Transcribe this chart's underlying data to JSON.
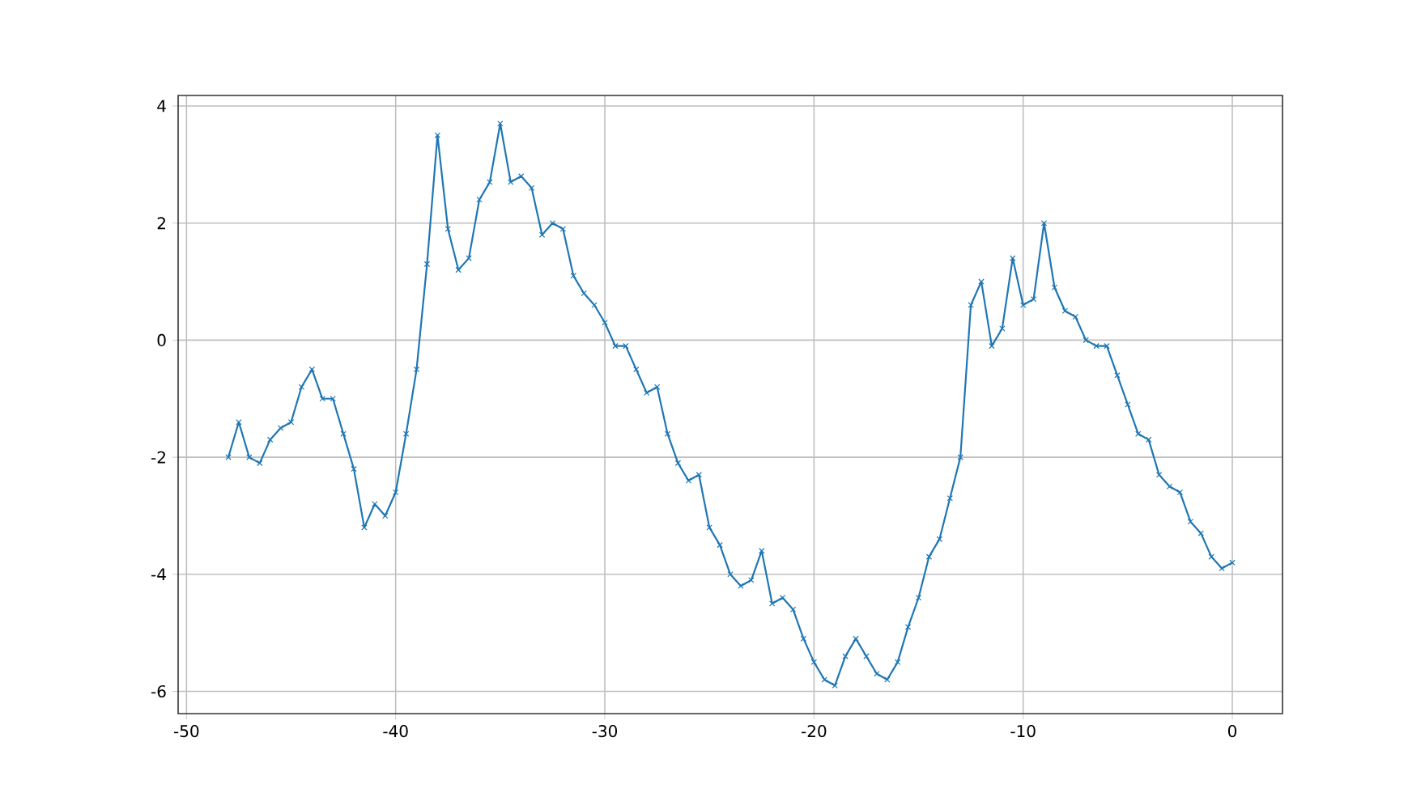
{
  "chart_data": {
    "type": "line",
    "x": [
      -48,
      -47.5,
      -47,
      -46.5,
      -46,
      -45.5,
      -45,
      -44.5,
      -44,
      -43.5,
      -43,
      -42.5,
      -42,
      -41.5,
      -41,
      -40.5,
      -40,
      -39.5,
      -39,
      -38.5,
      -38,
      -37.5,
      -37,
      -36.5,
      -36,
      -35.5,
      -35,
      -34.5,
      -34,
      -33.5,
      -33,
      -32.5,
      -32,
      -31.5,
      -31,
      -30.5,
      -30,
      -29.5,
      -29,
      -28.5,
      -28,
      -27.5,
      -27,
      -26.5,
      -26,
      -25.5,
      -25,
      -24.5,
      -24,
      -23.5,
      -23,
      -22.5,
      -22,
      -21.5,
      -21,
      -20.5,
      -20,
      -19.5,
      -19,
      -18.5,
      -18,
      -17.5,
      -17,
      -16.5,
      -16,
      -15.5,
      -15,
      -14.5,
      -14,
      -13.5,
      -13,
      -12.5,
      -12,
      -11.5,
      -11,
      -10.5,
      -10,
      -9.5,
      -9,
      -8.5,
      -8,
      -7.5,
      -7,
      -6.5,
      -6,
      -5.5,
      -5,
      -4.5,
      -4,
      -3.5,
      -3,
      -2.5,
      -2,
      -1.5,
      -1,
      -0.5,
      0
    ],
    "series": [
      {
        "color": "#1f77b4",
        "values": [
          -2.0,
          -1.4,
          -2.0,
          -2.1,
          -1.7,
          -1.5,
          -1.4,
          -0.8,
          -0.5,
          -1.0,
          -1.0,
          -1.6,
          -2.2,
          -3.2,
          -2.8,
          -3.0,
          -2.6,
          -1.6,
          -0.5,
          1.3,
          3.5,
          1.9,
          1.2,
          1.4,
          2.4,
          2.7,
          3.7,
          2.7,
          2.8,
          2.6,
          1.8,
          2.0,
          1.9,
          1.1,
          0.8,
          0.6,
          0.3,
          -0.1,
          -0.1,
          -0.5,
          -0.9,
          -0.8,
          -1.6,
          -2.1,
          -2.4,
          -2.3,
          -3.2,
          -3.5,
          -4.0,
          -4.2,
          -4.1,
          -3.6,
          -4.5,
          -4.4,
          -4.6,
          -5.1,
          -5.5,
          -5.8,
          -5.9,
          -5.4,
          -5.1,
          -5.4,
          -5.7,
          -5.8,
          -5.5,
          -4.9,
          -4.4,
          -3.7,
          -3.4,
          -2.7,
          -2.0,
          0.6,
          1.0,
          -0.1,
          0.2,
          1.4,
          0.6,
          0.7,
          2.0,
          0.9,
          0.5,
          0.4,
          0.0,
          -0.1,
          -0.1,
          -0.6,
          -1.1,
          -1.6,
          -1.7,
          -2.3,
          -2.5,
          -2.6,
          -3.1,
          -3.3,
          -3.7,
          -3.9,
          -3.8
        ]
      }
    ],
    "xlim": [
      -50.4,
      2.4
    ],
    "ylim": [
      -6.38,
      4.18
    ],
    "xticks": [
      -50,
      -40,
      -30,
      -20,
      -10,
      0
    ],
    "yticks": [
      -6,
      -4,
      -2,
      0,
      2,
      4
    ],
    "grid": true,
    "marker": "cross",
    "line_style": "solid"
  }
}
